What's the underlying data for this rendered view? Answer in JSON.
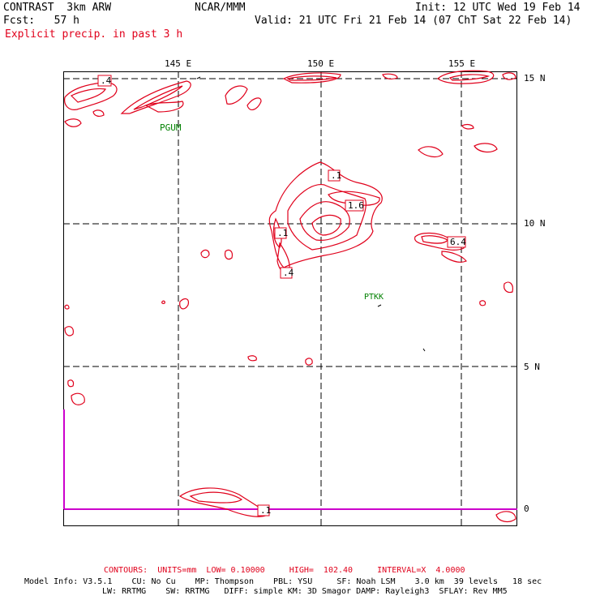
{
  "header": {
    "model": "CONTRAST  3km ARW",
    "org": "NCAR/MMM",
    "init": "Init: 12 UTC Wed 19 Feb 14",
    "fcst": "Fcst:   57 h",
    "valid": "Valid: 21 UTC Fri 21 Feb 14 (07 ChT Sat 22 Feb 14)",
    "field": "Explicit precip. in past 3 h"
  },
  "axes": {
    "lon_labels": [
      "145 E",
      "150 E",
      "155 E"
    ],
    "lat_labels": [
      "15 N",
      "10 N",
      "5 N",
      "0"
    ]
  },
  "stations": [
    {
      "id": "PGUM"
    },
    {
      "id": "PTKK"
    }
  ],
  "contour_labels": [
    ".4",
    ".1",
    "1.6",
    ".1",
    ".4",
    "6.4",
    ".1"
  ],
  "footer": {
    "contours": "CONTOURS:  UNITS=mm  LOW= 0.10000     HIGH=  102.40     INTERVAL=X  4.0000",
    "info1": "Model Info: V3.5.1    CU: No Cu    MP: Thompson    PBL: YSU     SF: Noah LSM    3.0 km  39 levels   18 sec",
    "info2": "LW: RRTMG    SW: RRTMG   DIFF: simple KM: 3D Smagor DAMP: Rayleigh3  SFLAY: Rev MM5"
  },
  "colors": {
    "contour": "#e0001b",
    "grid": "#000000",
    "station": "#008000",
    "domain_edge": "#cc00cc"
  }
}
